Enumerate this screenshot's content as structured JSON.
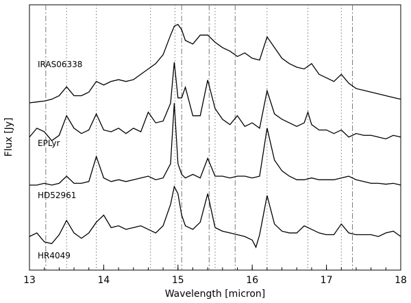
{
  "chart_data": {
    "type": "line",
    "title": "",
    "xlabel": "Wavelength [micron]",
    "ylabel": "Flux [Jy]",
    "xlim": [
      13,
      18
    ],
    "x_ticks": [
      "13",
      "14",
      "15",
      "16",
      "17",
      "18"
    ],
    "y_ticks": "none",
    "grid": false,
    "legend": "none",
    "reference_lines": {
      "dotted": [
        13.5,
        13.9,
        14.63,
        14.96,
        15.5,
        16.2,
        16.75,
        17.2
      ],
      "dash_dot": [
        13.22,
        15.05,
        15.42,
        15.77,
        17.35
      ]
    },
    "series": [
      {
        "name": "IRAS06338",
        "x": [
          13.0,
          13.1,
          13.2,
          13.3,
          13.4,
          13.5,
          13.6,
          13.7,
          13.8,
          13.9,
          14.0,
          14.1,
          14.2,
          14.3,
          14.4,
          14.5,
          14.6,
          14.7,
          14.8,
          14.9,
          14.95,
          15.0,
          15.05,
          15.1,
          15.2,
          15.3,
          15.4,
          15.5,
          15.6,
          15.7,
          15.8,
          15.9,
          16.0,
          16.1,
          16.2,
          16.3,
          16.4,
          16.5,
          16.6,
          16.7,
          16.8,
          16.9,
          17.0,
          17.1,
          17.2,
          17.3,
          17.4,
          17.5,
          17.6,
          17.7,
          17.8,
          17.9,
          18.0
        ],
        "y": [
          0.0,
          0.05,
          0.1,
          0.2,
          0.4,
          0.9,
          0.4,
          0.4,
          0.6,
          1.2,
          1.0,
          1.2,
          1.3,
          1.2,
          1.3,
          1.6,
          1.9,
          2.2,
          2.7,
          3.8,
          4.3,
          4.4,
          4.1,
          3.5,
          3.3,
          3.8,
          3.8,
          3.4,
          3.1,
          2.9,
          2.6,
          2.8,
          2.5,
          2.4,
          3.7,
          3.1,
          2.5,
          2.2,
          2.0,
          1.9,
          2.2,
          1.6,
          1.4,
          1.2,
          1.6,
          1.1,
          0.8,
          0.7,
          0.6,
          0.5,
          0.4,
          0.3,
          0.2
        ]
      },
      {
        "name": "EPLyr",
        "x": [
          13.0,
          13.1,
          13.2,
          13.3,
          13.4,
          13.5,
          13.6,
          13.7,
          13.8,
          13.9,
          14.0,
          14.1,
          14.2,
          14.3,
          14.4,
          14.5,
          14.6,
          14.7,
          14.8,
          14.9,
          14.95,
          15.0,
          15.05,
          15.1,
          15.2,
          15.3,
          15.4,
          15.5,
          15.6,
          15.7,
          15.8,
          15.9,
          16.0,
          16.1,
          16.2,
          16.3,
          16.4,
          16.5,
          16.6,
          16.7,
          16.75,
          16.8,
          16.9,
          17.0,
          17.1,
          17.2,
          17.3,
          17.4,
          17.5,
          17.6,
          17.7,
          17.8,
          17.9,
          18.0
        ],
        "y": [
          0.0,
          0.5,
          0.3,
          -0.2,
          0.1,
          1.2,
          0.5,
          0.2,
          0.4,
          1.3,
          0.4,
          0.3,
          0.5,
          0.2,
          0.5,
          0.3,
          1.4,
          0.8,
          0.9,
          1.9,
          4.2,
          2.2,
          2.2,
          2.8,
          1.2,
          1.2,
          3.2,
          1.6,
          1.0,
          0.7,
          1.2,
          0.6,
          0.8,
          0.5,
          2.6,
          1.3,
          1.0,
          0.8,
          0.6,
          0.8,
          1.4,
          0.7,
          0.4,
          0.4,
          0.2,
          0.4,
          0.0,
          0.2,
          0.1,
          0.1,
          0.0,
          -0.1,
          0.1,
          0.0
        ]
      },
      {
        "name": "HD52961",
        "x": [
          13.0,
          13.1,
          13.2,
          13.3,
          13.4,
          13.5,
          13.6,
          13.7,
          13.8,
          13.9,
          14.0,
          14.1,
          14.2,
          14.3,
          14.4,
          14.5,
          14.6,
          14.7,
          14.8,
          14.9,
          14.95,
          15.0,
          15.05,
          15.1,
          15.2,
          15.3,
          15.4,
          15.5,
          15.6,
          15.7,
          15.8,
          15.9,
          16.0,
          16.1,
          16.2,
          16.3,
          16.4,
          16.5,
          16.6,
          16.7,
          16.8,
          16.9,
          17.0,
          17.1,
          17.2,
          17.3,
          17.4,
          17.5,
          17.6,
          17.7,
          17.8,
          17.9,
          18.0
        ],
        "y": [
          0.0,
          0.0,
          0.1,
          0.0,
          0.1,
          0.5,
          0.1,
          0.1,
          0.2,
          1.6,
          0.4,
          0.2,
          0.3,
          0.2,
          0.3,
          0.4,
          0.5,
          0.3,
          0.4,
          1.2,
          4.6,
          1.2,
          0.6,
          0.4,
          0.6,
          0.4,
          1.5,
          0.5,
          0.5,
          0.4,
          0.5,
          0.5,
          0.4,
          0.5,
          3.2,
          1.4,
          0.8,
          0.5,
          0.3,
          0.3,
          0.4,
          0.3,
          0.3,
          0.3,
          0.4,
          0.5,
          0.3,
          0.2,
          0.1,
          0.1,
          0.05,
          0.1,
          0.0
        ]
      },
      {
        "name": "HR4049",
        "x": [
          13.0,
          13.1,
          13.2,
          13.3,
          13.4,
          13.5,
          13.6,
          13.7,
          13.8,
          13.9,
          14.0,
          14.1,
          14.2,
          14.3,
          14.4,
          14.5,
          14.6,
          14.7,
          14.8,
          14.9,
          14.95,
          15.0,
          15.05,
          15.1,
          15.2,
          15.3,
          15.4,
          15.5,
          15.6,
          15.7,
          15.8,
          15.9,
          16.0,
          16.05,
          16.1,
          16.2,
          16.3,
          16.4,
          16.5,
          16.6,
          16.7,
          16.8,
          16.9,
          17.0,
          17.1,
          17.2,
          17.3,
          17.4,
          17.5,
          17.6,
          17.7,
          17.8,
          17.9,
          18.0
        ],
        "y": [
          0.0,
          0.2,
          -0.3,
          -0.4,
          0.1,
          0.9,
          0.2,
          -0.1,
          0.2,
          0.8,
          1.2,
          0.5,
          0.6,
          0.4,
          0.5,
          0.6,
          0.4,
          0.2,
          0.6,
          1.8,
          2.8,
          2.4,
          1.2,
          0.6,
          0.4,
          0.8,
          2.4,
          0.5,
          0.3,
          0.2,
          0.1,
          0.0,
          -0.2,
          -0.6,
          0.1,
          2.3,
          0.7,
          0.3,
          0.2,
          0.2,
          0.6,
          0.4,
          0.2,
          0.1,
          0.1,
          0.7,
          0.2,
          0.1,
          0.1,
          0.1,
          0.0,
          0.2,
          0.3,
          0.0
        ]
      }
    ]
  }
}
